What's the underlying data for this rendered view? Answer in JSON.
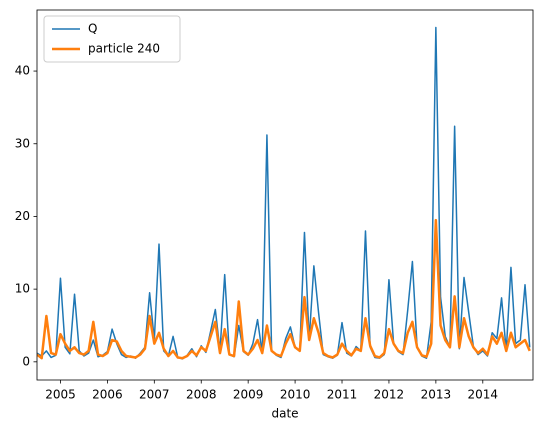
{
  "chart_data": {
    "type": "line",
    "xlabel": "date",
    "x": [
      2004.5,
      2004.6,
      2004.7,
      2004.8,
      2004.9,
      2005.0,
      2005.1,
      2005.2,
      2005.3,
      2005.4,
      2005.5,
      2005.6,
      2005.7,
      2005.8,
      2005.9,
      2006.0,
      2006.1,
      2006.2,
      2006.3,
      2006.4,
      2006.5,
      2006.6,
      2006.7,
      2006.8,
      2006.9,
      2007.0,
      2007.1,
      2007.2,
      2007.3,
      2007.4,
      2007.5,
      2007.6,
      2007.7,
      2007.8,
      2007.9,
      2008.0,
      2008.1,
      2008.2,
      2008.3,
      2008.4,
      2008.5,
      2008.6,
      2008.7,
      2008.8,
      2008.9,
      2009.0,
      2009.1,
      2009.2,
      2009.3,
      2009.4,
      2009.5,
      2009.6,
      2009.7,
      2009.8,
      2009.9,
      2010.0,
      2010.1,
      2010.2,
      2010.3,
      2010.4,
      2010.5,
      2010.6,
      2010.7,
      2010.8,
      2010.9,
      2011.0,
      2011.1,
      2011.2,
      2011.3,
      2011.4,
      2011.5,
      2011.6,
      2011.7,
      2011.8,
      2011.9,
      2012.0,
      2012.1,
      2012.2,
      2012.3,
      2012.4,
      2012.5,
      2012.6,
      2012.7,
      2012.8,
      2012.9,
      2013.0,
      2013.1,
      2013.2,
      2013.3,
      2013.4,
      2013.5,
      2013.6,
      2013.7,
      2013.8,
      2013.9,
      2014.0,
      2014.1,
      2014.2,
      2014.3,
      2014.4,
      2014.5,
      2014.6,
      2014.7,
      2014.8,
      2014.9,
      2015.0
    ],
    "series": [
      {
        "name": "Q",
        "color": "#1f77b4",
        "values": [
          1.2,
          0.8,
          1.5,
          0.6,
          0.9,
          11.5,
          2.0,
          1.1,
          9.3,
          1.5,
          0.8,
          1.2,
          3.0,
          0.7,
          0.9,
          1.4,
          4.5,
          2.5,
          1.0,
          0.6,
          0.8,
          0.5,
          1.2,
          2.0,
          9.5,
          3.0,
          16.2,
          1.5,
          0.8,
          3.5,
          0.6,
          0.4,
          0.9,
          1.8,
          0.7,
          2.2,
          1.3,
          4.2,
          7.2,
          1.5,
          12.0,
          1.0,
          0.7,
          5.0,
          1.4,
          0.9,
          2.5,
          5.8,
          1.2,
          31.2,
          1.5,
          0.9,
          0.6,
          3.2,
          4.8,
          2.0,
          1.5,
          17.8,
          3.0,
          13.2,
          6.8,
          1.0,
          0.7,
          0.5,
          0.9,
          5.4,
          1.2,
          0.8,
          2.1,
          1.5,
          18.0,
          2.0,
          0.6,
          0.5,
          1.0,
          11.3,
          2.5,
          1.4,
          1.0,
          7.1,
          13.8,
          2.0,
          0.8,
          0.5,
          5.5,
          46.0,
          8.9,
          3.5,
          2.0,
          32.4,
          1.8,
          11.6,
          6.8,
          2.1,
          1.0,
          1.5,
          0.8,
          4.0,
          3.2,
          8.8,
          1.5,
          13.0,
          2.5,
          3.0,
          10.6,
          2.0
        ]
      },
      {
        "name": "particle 240",
        "color": "#ff7f0e",
        "values": [
          1.0,
          0.5,
          6.3,
          1.2,
          1.0,
          3.8,
          2.5,
          1.5,
          2.0,
          1.2,
          1.0,
          1.5,
          5.5,
          1.0,
          0.8,
          1.2,
          3.0,
          2.8,
          1.5,
          0.8,
          0.7,
          0.6,
          1.0,
          1.8,
          6.3,
          2.5,
          4.0,
          1.8,
          0.8,
          1.5,
          0.6,
          0.5,
          0.8,
          1.5,
          0.9,
          2.0,
          1.5,
          3.5,
          5.5,
          1.2,
          4.5,
          1.0,
          0.8,
          8.3,
          1.5,
          1.0,
          1.8,
          3.0,
          1.2,
          5.0,
          1.5,
          1.0,
          0.8,
          2.5,
          3.8,
          2.0,
          1.5,
          8.9,
          3.0,
          6.0,
          4.0,
          1.2,
          0.8,
          0.6,
          1.0,
          2.5,
          1.5,
          0.9,
          1.8,
          1.5,
          6.0,
          2.2,
          0.8,
          0.6,
          1.2,
          4.5,
          2.5,
          1.5,
          1.2,
          4.0,
          5.5,
          2.0,
          0.9,
          0.7,
          2.5,
          19.5,
          5.0,
          3.0,
          2.0,
          9.0,
          2.0,
          6.0,
          3.5,
          2.0,
          1.2,
          1.8,
          1.0,
          3.5,
          2.5,
          4.0,
          1.5,
          4.0,
          2.0,
          2.5,
          3.0,
          1.5
        ]
      }
    ],
    "xlim": [
      2004.5,
      2015.07
    ],
    "xticks": [
      2005,
      2006,
      2007,
      2008,
      2009,
      2010,
      2011,
      2012,
      2013,
      2014
    ],
    "ylim": [
      -2.5,
      48.4
    ],
    "yticks": [
      0,
      10,
      20,
      30,
      40
    ],
    "legend": "upper left"
  }
}
